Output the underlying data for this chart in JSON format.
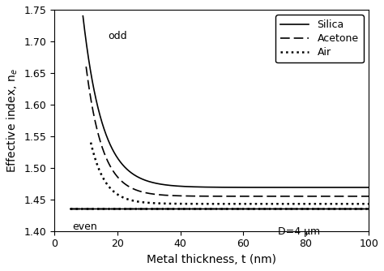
{
  "xlim": [
    0,
    100
  ],
  "ylim": [
    1.4,
    1.75
  ],
  "xlabel": "Metal thickness, t (nm)",
  "ylabel": "Effective index, n$_e$",
  "xticks": [
    0,
    20,
    40,
    60,
    80,
    100
  ],
  "yticks": [
    1.4,
    1.45,
    1.5,
    1.55,
    1.6,
    1.65,
    1.7,
    1.75
  ],
  "legend_entries": [
    "Silica",
    "Acetone",
    "Air"
  ],
  "line_color": "#000000",
  "annotation_odd": "odd",
  "annotation_even": "even",
  "annotation_D": "D=4 μm",
  "odd_silica_peak": 1.74,
  "odd_silica_x0": 9.0,
  "odd_silica_decay": 0.16,
  "odd_silica_asymptote": 1.469,
  "odd_acetone_peak": 1.66,
  "odd_acetone_x0": 10.0,
  "odd_acetone_decay": 0.19,
  "odd_acetone_asymptote": 1.455,
  "odd_air_peak": 1.54,
  "odd_air_x0": 11.5,
  "odd_air_decay": 0.22,
  "odd_air_asymptote": 1.443,
  "even_asymptote": 1.435,
  "even_x0": 5.0
}
